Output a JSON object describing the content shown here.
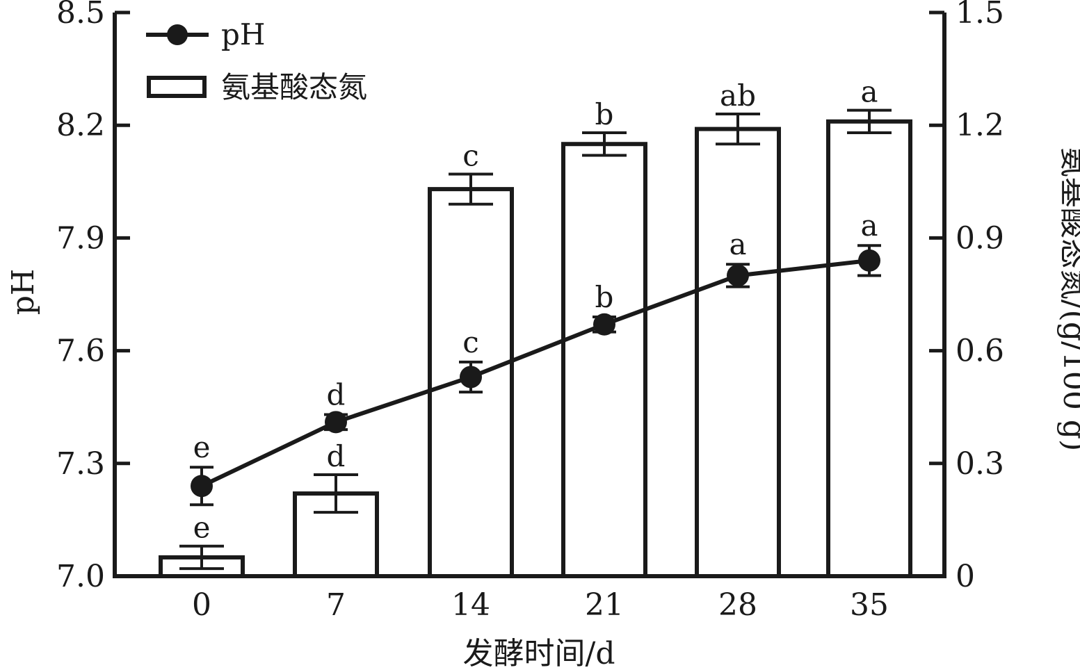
{
  "chart_data": {
    "type": "bar",
    "x": [
      0,
      7,
      14,
      21,
      28,
      35
    ],
    "xlabel": "发酵时间/d",
    "ylabel": "pH",
    "y2label": "氨基酸态氮/(g/100 g)",
    "ylim": [
      7.0,
      8.5
    ],
    "y2lim": [
      0,
      1.5
    ],
    "yticks": [
      "7.0",
      "7.3",
      "7.6",
      "7.9",
      "8.2",
      "8.5"
    ],
    "y2ticks": [
      "0",
      "0.3",
      "0.6",
      "0.9",
      "1.2",
      "1.5"
    ],
    "legend_position": "top-left",
    "series": [
      {
        "name": "pH",
        "kind": "line-markers",
        "axis": "left",
        "values": [
          7.24,
          7.41,
          7.53,
          7.67,
          7.8,
          7.84
        ],
        "errors": [
          0.05,
          0.02,
          0.04,
          0.02,
          0.03,
          0.04
        ],
        "sig": [
          "e",
          "d",
          "c",
          "b",
          "a",
          "a"
        ]
      },
      {
        "name": "氨基酸态氮",
        "kind": "bar",
        "axis": "right",
        "values": [
          0.05,
          0.22,
          1.03,
          1.15,
          1.19,
          1.21
        ],
        "errors": [
          0.03,
          0.05,
          0.04,
          0.03,
          0.04,
          0.03
        ],
        "sig": [
          "e",
          "d",
          "c",
          "b",
          "ab",
          "a"
        ]
      }
    ],
    "grid": false,
    "colors": {
      "ink": "#1a1a1a",
      "bar_fill": "#ffffff"
    }
  }
}
